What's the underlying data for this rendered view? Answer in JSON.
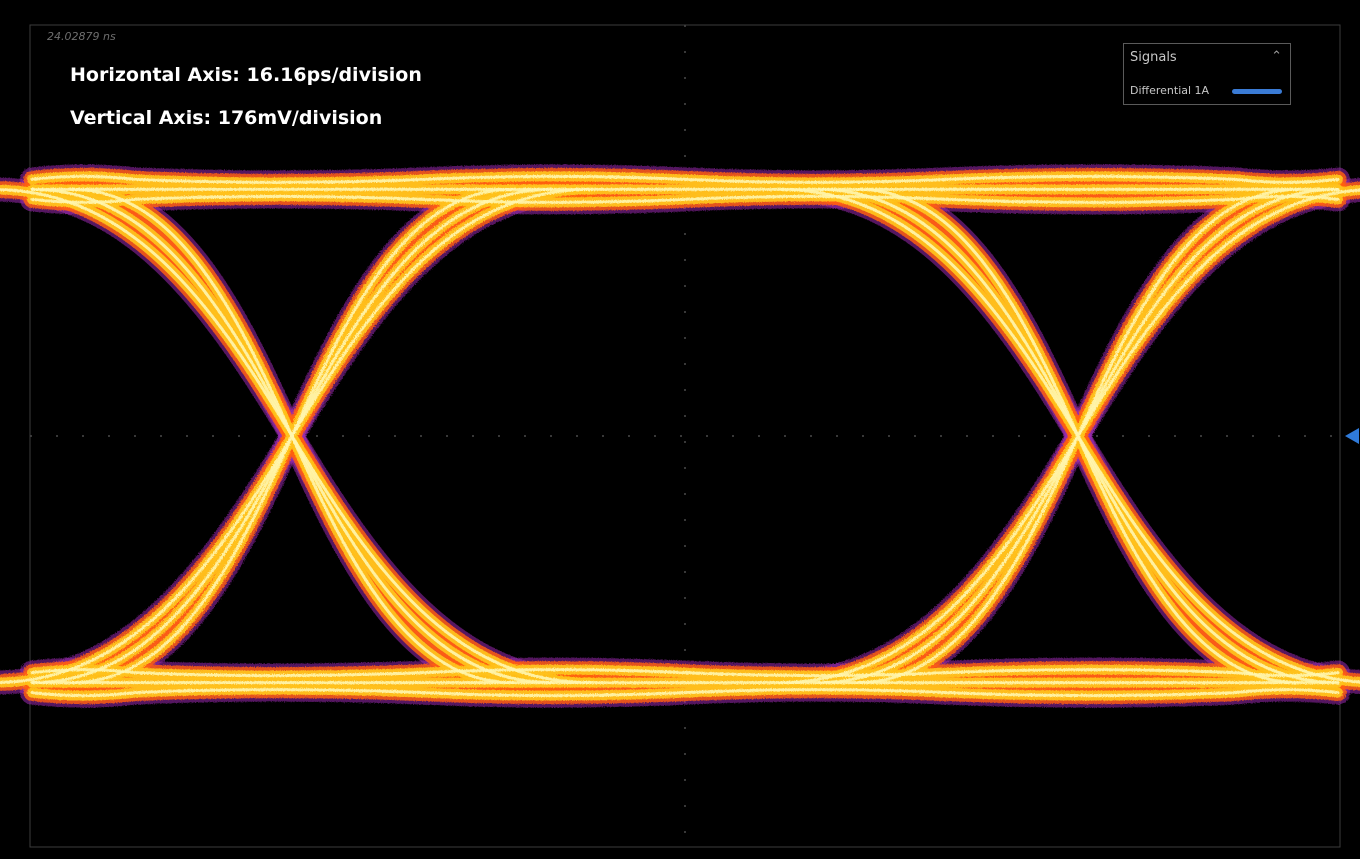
{
  "annotations": {
    "horizontal_axis": "Horizontal Axis: 16.16ps/division",
    "vertical_axis": "Vertical Axis: 176mV/division"
  },
  "timestamp": "24.02879 ns",
  "legend": {
    "title": "Signals",
    "collapse_glyph": "⌃",
    "series": [
      {
        "name": "Differential 1A",
        "color": "#3a7bd5"
      }
    ]
  },
  "colors": {
    "background": "#000000",
    "grid": "#4a4a4a",
    "trace_core": "#fff6b0",
    "trace_mid": "#ffc21a",
    "trace_outer": "#ff5e10",
    "trace_edge": "#9b2bb0",
    "trigger_marker": "#2f7ad9"
  },
  "chart_data": {
    "type": "eye-diagram",
    "title": "",
    "x_scale": "16.16ps/division",
    "y_scale": "176mV/division",
    "x_divisions": 10,
    "y_divisions": 8,
    "grid": true,
    "legend_position": "top-right",
    "unit_interval_divisions": 6,
    "eye_crossings_div": [
      2,
      8
    ],
    "logic_levels_div": [
      2.4,
      -2.4
    ],
    "eye_opening_height_div": 4.5,
    "series": [
      {
        "name": "Differential 1A"
      }
    ]
  }
}
